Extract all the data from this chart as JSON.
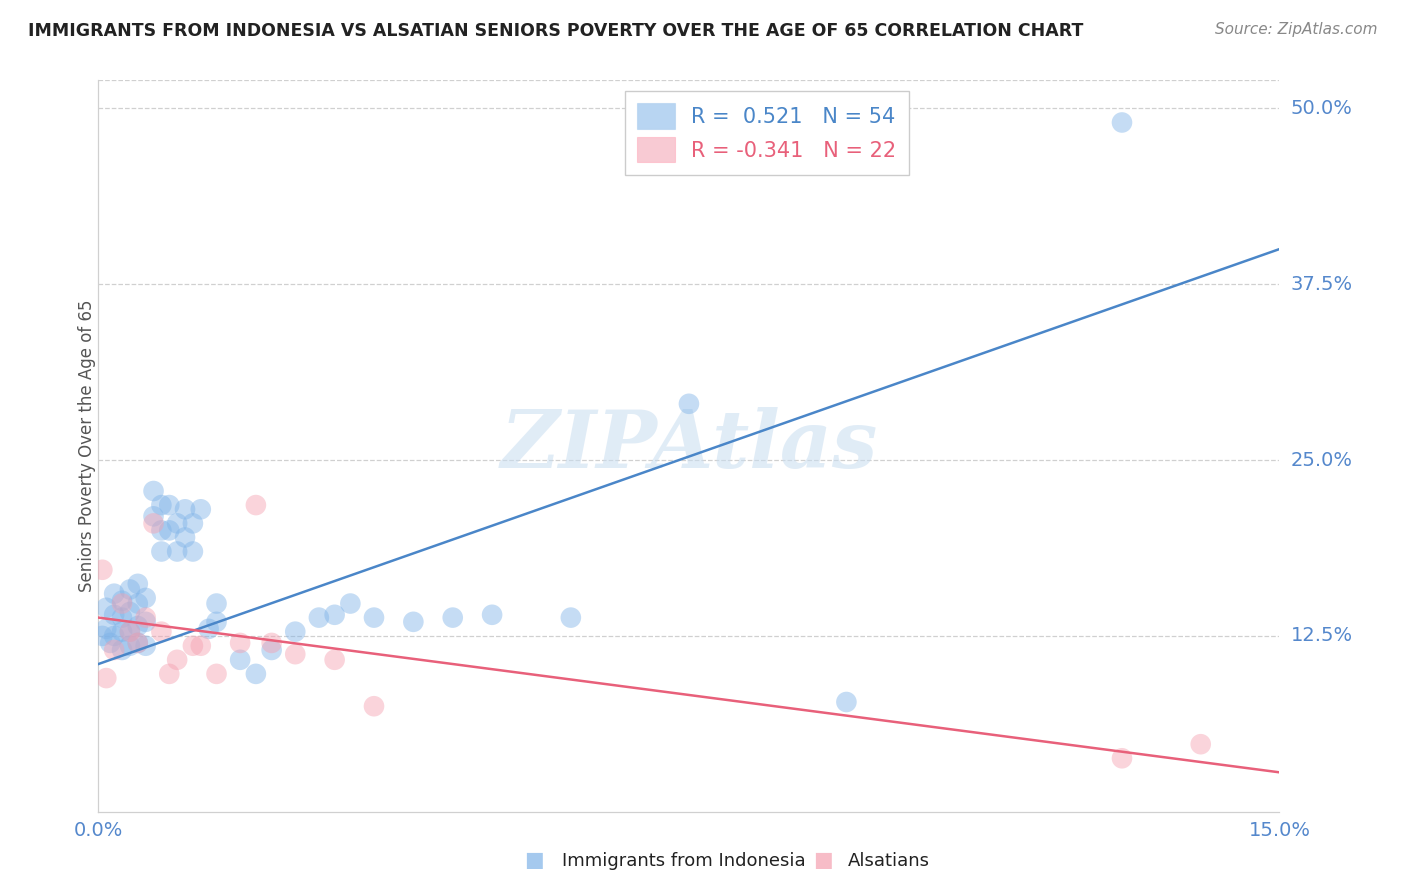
{
  "title": "IMMIGRANTS FROM INDONESIA VS ALSATIAN SENIORS POVERTY OVER THE AGE OF 65 CORRELATION CHART",
  "source": "Source: ZipAtlas.com",
  "ylabel": "Seniors Poverty Over the Age of 65",
  "ytick_labels": [
    "50.0%",
    "37.5%",
    "25.0%",
    "12.5%"
  ],
  "ytick_values": [
    0.5,
    0.375,
    0.25,
    0.125
  ],
  "xlim": [
    0.0,
    0.15
  ],
  "ylim": [
    0.0,
    0.52
  ],
  "blue_R": 0.521,
  "blue_N": 54,
  "pink_R": -0.341,
  "pink_N": 22,
  "legend_blue": "Immigrants from Indonesia",
  "legend_pink": "Alsatians",
  "watermark": "ZIPAtlas",
  "background_color": "#ffffff",
  "blue_color": "#7fb3e8",
  "pink_color": "#f4a0b0",
  "blue_line_color": "#4a86c8",
  "pink_line_color": "#e8607a",
  "grid_color": "#d0d0d0",
  "title_color": "#222222",
  "axis_label_color": "#5588cc",
  "blue_scatter_x": [
    0.0005,
    0.001,
    0.001,
    0.0015,
    0.002,
    0.002,
    0.002,
    0.003,
    0.003,
    0.003,
    0.003,
    0.004,
    0.004,
    0.004,
    0.004,
    0.005,
    0.005,
    0.005,
    0.005,
    0.006,
    0.006,
    0.006,
    0.007,
    0.007,
    0.008,
    0.008,
    0.008,
    0.009,
    0.009,
    0.01,
    0.01,
    0.011,
    0.011,
    0.012,
    0.012,
    0.013,
    0.014,
    0.015,
    0.015,
    0.018,
    0.02,
    0.022,
    0.025,
    0.028,
    0.03,
    0.032,
    0.035,
    0.04,
    0.045,
    0.05,
    0.06,
    0.075,
    0.095,
    0.13
  ],
  "blue_scatter_y": [
    0.125,
    0.13,
    0.145,
    0.12,
    0.125,
    0.14,
    0.155,
    0.115,
    0.128,
    0.138,
    0.15,
    0.118,
    0.128,
    0.142,
    0.158,
    0.12,
    0.132,
    0.148,
    0.162,
    0.118,
    0.135,
    0.152,
    0.21,
    0.228,
    0.185,
    0.2,
    0.218,
    0.2,
    0.218,
    0.185,
    0.205,
    0.195,
    0.215,
    0.185,
    0.205,
    0.215,
    0.13,
    0.135,
    0.148,
    0.108,
    0.098,
    0.115,
    0.128,
    0.138,
    0.14,
    0.148,
    0.138,
    0.135,
    0.138,
    0.14,
    0.138,
    0.29,
    0.078,
    0.49
  ],
  "pink_scatter_x": [
    0.0005,
    0.001,
    0.002,
    0.003,
    0.004,
    0.005,
    0.006,
    0.007,
    0.008,
    0.009,
    0.01,
    0.012,
    0.013,
    0.015,
    0.018,
    0.02,
    0.022,
    0.025,
    0.03,
    0.035,
    0.13,
    0.14
  ],
  "pink_scatter_y": [
    0.172,
    0.095,
    0.115,
    0.148,
    0.128,
    0.12,
    0.138,
    0.205,
    0.128,
    0.098,
    0.108,
    0.118,
    0.118,
    0.098,
    0.12,
    0.218,
    0.12,
    0.112,
    0.108,
    0.075,
    0.038,
    0.048
  ],
  "blue_line_x": [
    0.0,
    0.15
  ],
  "blue_line_y": [
    0.105,
    0.4
  ],
  "pink_line_x": [
    0.0,
    0.15
  ],
  "pink_line_y": [
    0.138,
    0.028
  ]
}
